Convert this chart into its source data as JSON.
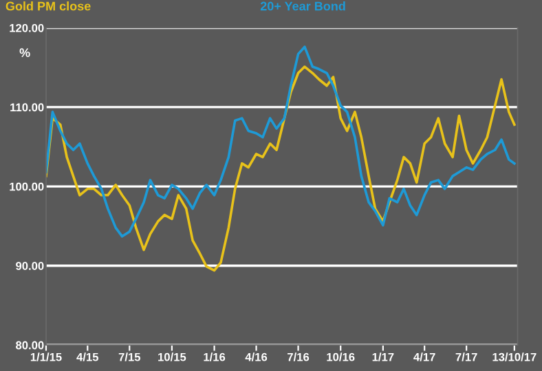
{
  "chart_data": {
    "type": "line",
    "ylabel": "%",
    "x": [
      "2015-01-01",
      "2015-01-15",
      "2015-02-01",
      "2015-02-15",
      "2015-03-01",
      "2015-03-15",
      "2015-04-01",
      "2015-04-15",
      "2015-05-01",
      "2015-05-15",
      "2015-06-01",
      "2015-06-15",
      "2015-07-01",
      "2015-07-15",
      "2015-08-01",
      "2015-08-15",
      "2015-09-01",
      "2015-09-15",
      "2015-10-01",
      "2015-10-15",
      "2015-11-01",
      "2015-11-15",
      "2015-12-01",
      "2015-12-15",
      "2016-01-01",
      "2016-01-15",
      "2016-02-01",
      "2016-02-15",
      "2016-03-01",
      "2016-03-15",
      "2016-04-01",
      "2016-04-15",
      "2016-05-01",
      "2016-05-15",
      "2016-06-01",
      "2016-06-15",
      "2016-07-01",
      "2016-07-15",
      "2016-08-01",
      "2016-08-15",
      "2016-09-01",
      "2016-09-15",
      "2016-10-01",
      "2016-10-15",
      "2016-11-01",
      "2016-11-15",
      "2016-12-01",
      "2016-12-15",
      "2017-01-01",
      "2017-01-15",
      "2017-02-01",
      "2017-02-15",
      "2017-03-01",
      "2017-03-15",
      "2017-04-01",
      "2017-04-15",
      "2017-05-01",
      "2017-05-15",
      "2017-06-01",
      "2017-06-15",
      "2017-07-01",
      "2017-07-15",
      "2017-08-01",
      "2017-08-15",
      "2017-09-01",
      "2017-09-15",
      "2017-10-01",
      "2017-10-13"
    ],
    "series": [
      {
        "name": "Gold PM close",
        "color": "#e8c21a",
        "values": [
          101.3,
          108.6,
          107.8,
          103.7,
          101.3,
          98.9,
          99.7,
          99.7,
          98.9,
          98.9,
          100.2,
          98.9,
          97.6,
          94.8,
          92.0,
          94.0,
          95.6,
          96.4,
          95.9,
          98.9,
          97.2,
          93.2,
          91.5,
          89.9,
          89.4,
          90.4,
          94.8,
          99.7,
          102.9,
          102.4,
          104.1,
          103.7,
          105.4,
          104.6,
          108.6,
          111.9,
          114.3,
          115.1,
          114.3,
          113.5,
          112.7,
          113.8,
          108.6,
          107.0,
          109.4,
          106.2,
          101.3,
          97.2,
          95.6,
          98.0,
          100.8,
          103.7,
          102.9,
          100.5,
          105.4,
          106.2,
          108.6,
          105.4,
          103.7,
          108.9,
          104.6,
          102.9,
          104.6,
          106.2,
          110.2,
          113.5,
          109.4,
          107.8
        ]
      },
      {
        "name": "20+ Year Bond",
        "color": "#1e9ad6",
        "values": [
          101.8,
          109.4,
          107.0,
          105.4,
          104.6,
          105.4,
          102.9,
          101.3,
          99.7,
          97.2,
          94.8,
          93.7,
          94.3,
          95.9,
          98.0,
          100.8,
          98.9,
          98.5,
          100.2,
          99.7,
          98.5,
          97.2,
          99.2,
          100.2,
          98.9,
          100.8,
          103.7,
          108.3,
          108.6,
          107.0,
          106.7,
          106.2,
          108.6,
          107.3,
          108.6,
          112.7,
          116.7,
          117.6,
          115.1,
          114.8,
          114.3,
          112.7,
          110.2,
          109.4,
          106.2,
          101.3,
          98.0,
          96.9,
          95.1,
          98.5,
          98.0,
          99.7,
          97.6,
          96.4,
          98.9,
          100.5,
          100.8,
          99.7,
          101.3,
          101.8,
          102.4,
          102.1,
          103.4,
          104.1,
          104.6,
          105.9,
          103.4,
          102.9
        ]
      }
    ],
    "xlim": [
      "2015-01-01",
      "2017-10-20"
    ],
    "xticks": [
      {
        "value": "2015-01-01",
        "label": "1/1/15"
      },
      {
        "value": "2015-04-01",
        "label": "4/15"
      },
      {
        "value": "2015-07-01",
        "label": "7/15"
      },
      {
        "value": "2015-10-01",
        "label": "10/15"
      },
      {
        "value": "2016-01-01",
        "label": "1/16"
      },
      {
        "value": "2016-04-01",
        "label": "4/16"
      },
      {
        "value": "2016-07-01",
        "label": "7/16"
      },
      {
        "value": "2016-10-01",
        "label": "10/16"
      },
      {
        "value": "2017-01-01",
        "label": "1/17"
      },
      {
        "value": "2017-04-01",
        "label": "4/17"
      },
      {
        "value": "2017-07-01",
        "label": "7/17"
      },
      {
        "value": "2017-10-13",
        "label": "13/10/17"
      }
    ],
    "ylim": [
      80,
      120
    ],
    "yticks": [
      {
        "value": 80,
        "label": "80.00"
      },
      {
        "value": 90,
        "label": "90.00"
      },
      {
        "value": 100,
        "label": "100.00"
      },
      {
        "value": 110,
        "label": "110.00"
      },
      {
        "value": 120,
        "label": "120.00"
      }
    ],
    "grid": "y",
    "legend": "top",
    "marker": "none",
    "line_style": "solid"
  }
}
